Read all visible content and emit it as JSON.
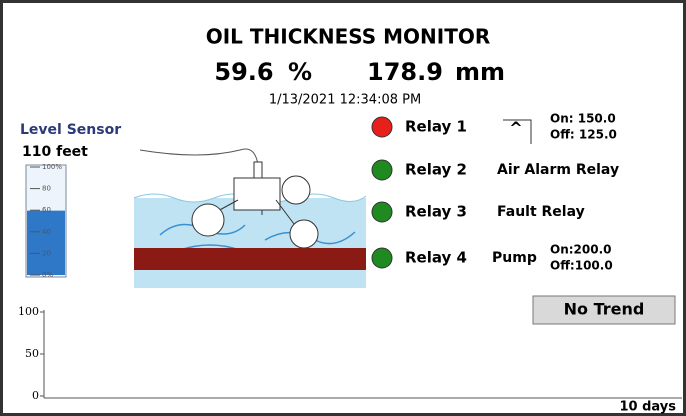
{
  "header": {
    "title": "OIL THICKNESS MONITOR",
    "percent": 59.6,
    "percent_unit": "%",
    "thickness": 178.9,
    "thickness_unit": "mm",
    "timestamp": "1/13/2021 12:34:08 PM"
  },
  "level_sensor": {
    "label": "Level Sensor",
    "distance": "110 feet",
    "ticks": [
      {
        "value": 100,
        "label": "100%"
      },
      80,
      60,
      40,
      20,
      {
        "value": 0,
        "label": "0%"
      }
    ]
  },
  "relays": [
    {
      "name": "Relay 1",
      "color": "#e8201c",
      "function": "^",
      "on": "On: 150.0",
      "off": "Off: 125.0"
    },
    {
      "name": "Relay 2",
      "color": "#1f8a1f",
      "function": "Air Alarm Relay"
    },
    {
      "name": "Relay 3",
      "color": "#1f8a1f",
      "function": "Fault Relay"
    },
    {
      "name": "Relay 4",
      "color": "#1f8a1f",
      "function": "Pump",
      "on": "On:200.0",
      "off": "Off:100.0"
    }
  ],
  "trend": {
    "ylim": [
      0,
      100
    ],
    "yticks": [
      0,
      50,
      100
    ],
    "x_label": "10 days",
    "button": "No Trend"
  }
}
